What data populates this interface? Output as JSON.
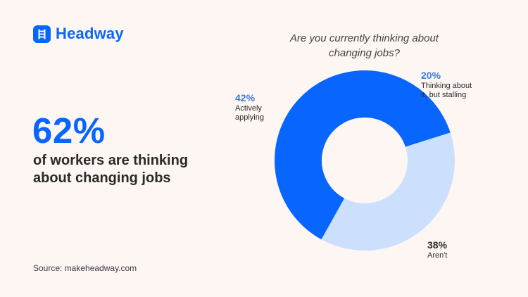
{
  "brand": {
    "name": "Headway",
    "icon": "ladder-icon",
    "color": "#0866FF"
  },
  "headline": {
    "stat": "62%",
    "line1": "of workers are thinking",
    "line2": "about changing jobs"
  },
  "source": "Source: makeheadway.com",
  "colors": {
    "background": "#FDF6F3",
    "primary_blue": "#0866FF",
    "light_blue": "#CCE0FD",
    "label_blue": "#3D7BE0",
    "text_dark": "#2A2A2A"
  },
  "chart_data": {
    "type": "pie",
    "variant": "donut",
    "title": "Are you currently thinking about changing jobs?",
    "title_lines": [
      "Are you currently thinking about",
      "changing jobs?"
    ],
    "start_angle_deg": 0,
    "direction": "clockwise",
    "slices": [
      {
        "label": "Thinking about it, but stalling",
        "label_lines": [
          "Thinking about",
          "it, but stalling"
        ],
        "value": 20,
        "display": "20%",
        "color": "#0866FF"
      },
      {
        "label": "Aren't",
        "label_lines": [
          "Aren't"
        ],
        "value": 38,
        "display": "38%",
        "color": "#CCE0FD"
      },
      {
        "label": "Actively applying",
        "label_lines": [
          "Actively",
          "applying"
        ],
        "value": 42,
        "display": "42%",
        "color": "#0866FF"
      }
    ],
    "legend": "none (direct labels)"
  }
}
